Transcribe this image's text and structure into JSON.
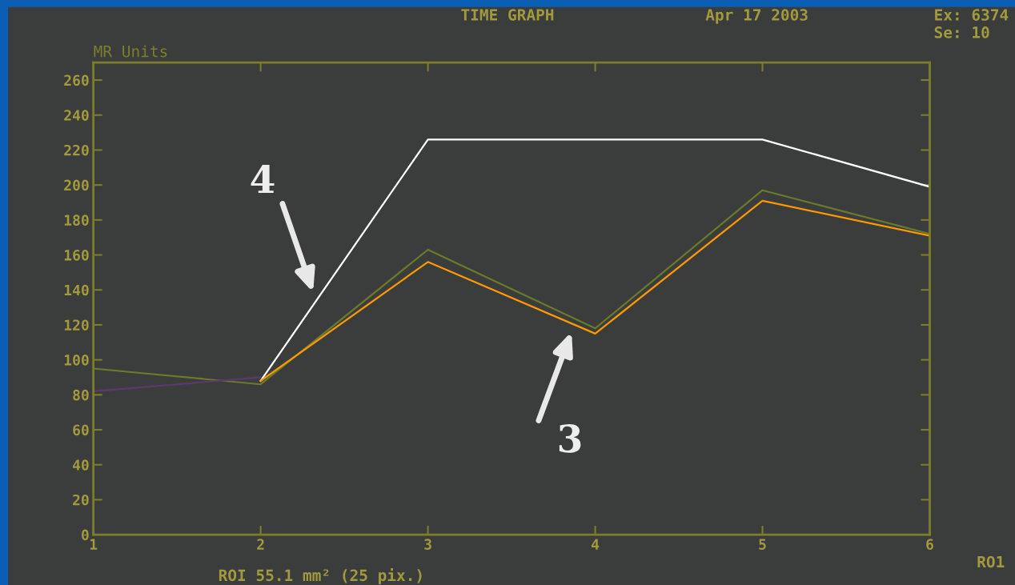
{
  "chart_data": {
    "type": "line",
    "title": "TIME GRAPH",
    "ylabel": "MR Units",
    "series": [
      {
        "color": "#6b7a2a",
        "x": [
          1,
          2,
          3,
          4,
          5,
          6
        ],
        "values": [
          95,
          86,
          163,
          118,
          197,
          172
        ]
      },
      {
        "color": "#5a3a6a",
        "x": [
          1,
          2
        ],
        "values": [
          82,
          90
        ]
      },
      {
        "color": "#ffffff",
        "x": [
          2,
          3,
          5,
          6
        ],
        "values": [
          88,
          226,
          226,
          199
        ]
      },
      {
        "color": "#ff9900",
        "x": [
          2,
          3,
          4,
          5,
          6
        ],
        "values": [
          88,
          156,
          115,
          191,
          171
        ]
      }
    ],
    "xlim": [
      1,
      6
    ],
    "xticks": [
      1,
      2,
      3,
      4,
      5,
      6
    ],
    "ylim": [
      0,
      270
    ],
    "yticks": [
      0,
      20,
      40,
      60,
      80,
      100,
      120,
      140,
      160,
      180,
      200,
      220,
      240,
      260
    ],
    "grid": false,
    "legend": false,
    "marker": "none",
    "line_style": "solid",
    "annotations": [
      "Apr 17 2003",
      "Ex: 6374",
      "Se: 10",
      "ROI 55.1 mm² (25 pix.)",
      "RO1",
      "4",
      "3"
    ]
  }
}
